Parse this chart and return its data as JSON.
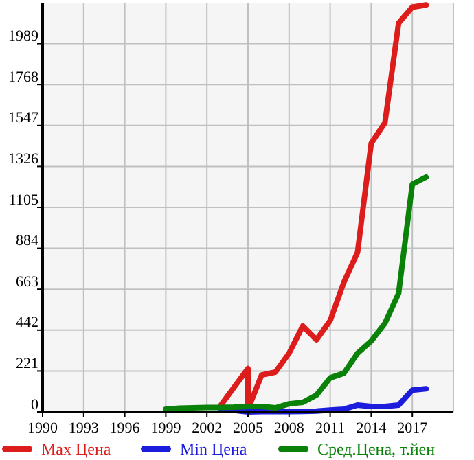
{
  "chart_data": {
    "type": "line",
    "x": [
      1999,
      2000,
      2001,
      2002,
      2003,
      2004,
      2005,
      2005,
      2006,
      2007,
      2008,
      2009,
      2010,
      2011,
      2012,
      2013,
      2014,
      2015,
      2016,
      2017,
      2018
    ],
    "xlim": [
      1990,
      2020
    ],
    "xticks": [
      1990,
      1993,
      1996,
      1999,
      2002,
      2005,
      2008,
      2011,
      2014,
      2017
    ],
    "ylim": [
      0,
      2210
    ],
    "yticks": [
      0,
      221,
      442,
      663,
      884,
      1105,
      1326,
      1547,
      1768,
      1989
    ],
    "grid": true,
    "legend": "bottom",
    "marker": "none",
    "line_style": "solid",
    "series": [
      {
        "name": "Max Цена",
        "color": "#dd1c1c",
        "values": [
          null,
          null,
          null,
          null,
          35,
          135,
          235,
          15,
          200,
          215,
          317,
          464,
          390,
          493,
          700,
          862,
          1451,
          1562,
          2100,
          2186,
          2198
        ]
      },
      {
        "name": "Min Цена",
        "color": "#1c1cdd",
        "values": [
          null,
          null,
          null,
          null,
          15,
          8,
          0,
          0,
          2,
          2,
          2,
          3,
          5,
          10,
          15,
          37,
          30,
          30,
          37,
          118,
          125
        ]
      },
      {
        "name": "Сред.Цена, т.йен",
        "color": "#0a820a",
        "values": [
          15,
          20,
          22,
          24,
          24,
          26,
          30,
          30,
          30,
          22,
          44,
          52,
          91,
          184,
          209,
          317,
          383,
          479,
          641,
          1230,
          1268
        ]
      }
    ]
  }
}
